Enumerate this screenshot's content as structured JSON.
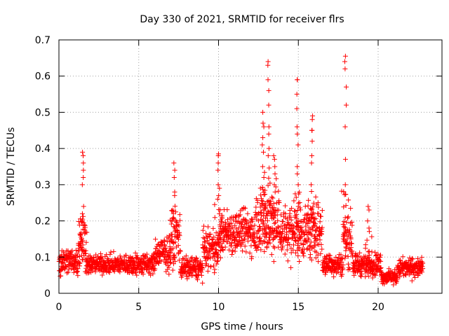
{
  "chart_data": {
    "type": "scatter",
    "title": "Day 330 of 2021, SRMTID for receiver flrs",
    "xlabel": "GPS time / hours",
    "ylabel": "SRMTID / TECUs",
    "xlim": [
      0,
      24
    ],
    "ylim": [
      0,
      0.7
    ],
    "xticks": [
      0,
      5,
      10,
      15,
      20
    ],
    "xtick_labels": [
      "0",
      "5",
      "10",
      "15",
      "20"
    ],
    "yticks": [
      0,
      0.1,
      0.2,
      0.3,
      0.4,
      0.5,
      0.6,
      0.7
    ],
    "ytick_labels": [
      "0",
      "0.1",
      "0.2",
      "0.3",
      "0.4",
      "0.5",
      "0.6",
      "0.7"
    ],
    "grid": true,
    "marker": "+",
    "color": "#ff0000",
    "series": [
      {
        "name": "SRMTID",
        "segments": [
          {
            "t0": 0.0,
            "t1": 1.2,
            "level": 0.09,
            "spread": 0.05
          },
          {
            "t0": 1.2,
            "t1": 1.7,
            "level": 0.15,
            "spread": 0.12
          },
          {
            "t0": 1.7,
            "t1": 4.5,
            "level": 0.08,
            "spread": 0.035
          },
          {
            "t0": 4.5,
            "t1": 6.0,
            "level": 0.08,
            "spread": 0.04
          },
          {
            "t0": 6.0,
            "t1": 7.0,
            "level": 0.11,
            "spread": 0.06
          },
          {
            "t0": 7.0,
            "t1": 7.6,
            "level": 0.16,
            "spread": 0.1
          },
          {
            "t0": 7.6,
            "t1": 9.0,
            "level": 0.07,
            "spread": 0.04
          },
          {
            "t0": 9.0,
            "t1": 10.0,
            "level": 0.12,
            "spread": 0.07
          },
          {
            "t0": 10.0,
            "t1": 12.3,
            "level": 0.17,
            "spread": 0.08
          },
          {
            "t0": 12.3,
            "t1": 13.8,
            "level": 0.2,
            "spread": 0.12
          },
          {
            "t0": 13.8,
            "t1": 16.5,
            "level": 0.17,
            "spread": 0.1
          },
          {
            "t0": 16.5,
            "t1": 17.8,
            "level": 0.08,
            "spread": 0.04
          },
          {
            "t0": 17.8,
            "t1": 18.4,
            "level": 0.15,
            "spread": 0.1
          },
          {
            "t0": 18.4,
            "t1": 20.2,
            "level": 0.08,
            "spread": 0.04
          },
          {
            "t0": 20.2,
            "t1": 21.2,
            "level": 0.045,
            "spread": 0.025
          },
          {
            "t0": 21.2,
            "t1": 22.8,
            "level": 0.07,
            "spread": 0.035
          }
        ],
        "peaks": [
          {
            "x": 1.5,
            "values": [
              0.39,
              0.38,
              0.36,
              0.34,
              0.32,
              0.3,
              0.24,
              0.22,
              0.2
            ]
          },
          {
            "x": 7.2,
            "values": [
              0.36,
              0.34,
              0.32,
              0.28,
              0.27,
              0.23,
              0.22
            ]
          },
          {
            "x": 10.0,
            "values": [
              0.385,
              0.38,
              0.36,
              0.34,
              0.3,
              0.29,
              0.27,
              0.26
            ]
          },
          {
            "x": 12.8,
            "values": [
              0.5,
              0.47,
              0.46,
              0.43,
              0.41,
              0.39,
              0.35,
              0.32
            ]
          },
          {
            "x": 13.1,
            "values": [
              0.64,
              0.63,
              0.59,
              0.56,
              0.52,
              0.46,
              0.44,
              0.4,
              0.38
            ]
          },
          {
            "x": 13.5,
            "values": [
              0.38,
              0.37,
              0.35,
              0.33,
              0.3,
              0.28
            ]
          },
          {
            "x": 14.95,
            "values": [
              0.59,
              0.59,
              0.55,
              0.51,
              0.46,
              0.44,
              0.41,
              0.35,
              0.33,
              0.3
            ]
          },
          {
            "x": 15.85,
            "values": [
              0.49,
              0.48,
              0.45,
              0.45,
              0.42,
              0.38,
              0.36,
              0.3
            ]
          },
          {
            "x": 17.95,
            "values": [
              0.655,
              0.64,
              0.62,
              0.57,
              0.52,
              0.46,
              0.37,
              0.3
            ]
          },
          {
            "x": 19.4,
            "values": [
              0.24,
              0.23,
              0.2,
              0.18
            ]
          }
        ]
      }
    ]
  }
}
